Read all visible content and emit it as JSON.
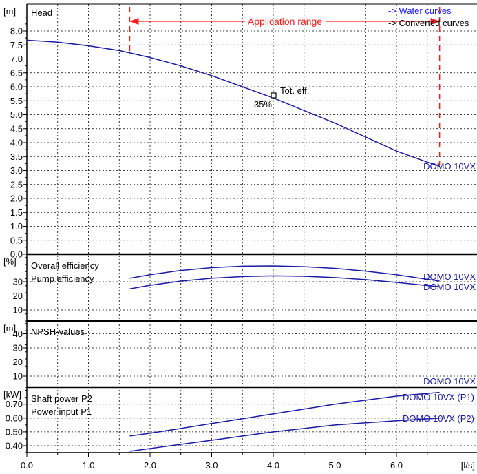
{
  "chart_data": {
    "type": "line",
    "x_unit": "[l/s]",
    "x_ticks": [
      "0.0",
      "1.0",
      "2.0",
      "3.0",
      "4.0",
      "5.0",
      "6.0"
    ],
    "legend": {
      "water": "-> Water curves",
      "converted": "-> Converted curves"
    },
    "application_range": {
      "label": "Application range",
      "x_start": 1.67,
      "x_end": 6.7
    },
    "colors": {
      "curve": "#1a1aa8",
      "range": "#ff1a1a",
      "grid": "#000000"
    },
    "panels": [
      {
        "id": "head",
        "unit": "[m]",
        "labels": [
          "Head"
        ],
        "y_ticks": [
          "0.0",
          "0.5",
          "1.0",
          "1.5",
          "2.0",
          "2.5",
          "3.0",
          "3.5",
          "4.0",
          "4.5",
          "5.0",
          "5.5",
          "6.0",
          "6.5",
          "7.0",
          "7.5",
          "8.0"
        ],
        "ylim": [
          0,
          8.5
        ],
        "series": [
          {
            "name": "DOMO 10VX",
            "x": [
              0.0,
              0.5,
              1.0,
              1.5,
              2.0,
              2.5,
              3.0,
              3.5,
              4.0,
              4.5,
              5.0,
              5.5,
              6.0,
              6.5,
              6.7
            ],
            "y": [
              7.67,
              7.6,
              7.47,
              7.3,
              7.05,
              6.75,
              6.4,
              6.0,
              5.6,
              5.15,
              4.7,
              4.2,
              3.7,
              3.3,
              3.15
            ]
          }
        ],
        "annotations": {
          "efficiency_point": {
            "x": 4.0,
            "y": 5.68,
            "label": "Tot. eff.",
            "value": "35%"
          }
        }
      },
      {
        "id": "efficiency",
        "unit": "[%]",
        "labels": [
          "Overall efficiency",
          "Pump efficiency"
        ],
        "y_ticks": [
          "10",
          "20",
          "30"
        ],
        "ylim": [
          0,
          42
        ],
        "series": [
          {
            "name": "DOMO 10VX",
            "x": [
              1.67,
              2.0,
              2.5,
              3.0,
              3.5,
              4.0,
              4.5,
              5.0,
              5.5,
              6.0,
              6.7
            ],
            "y": [
              32.5,
              35.0,
              38.0,
              40.0,
              41.0,
              41.2,
              40.7,
              39.5,
              37.5,
              35.0,
              30.5
            ]
          },
          {
            "name": "DOMO 10VX",
            "x": [
              1.67,
              2.0,
              2.5,
              3.0,
              3.5,
              4.0,
              4.5,
              5.0,
              5.5,
              6.0,
              6.7
            ],
            "y": [
              25.0,
              27.5,
              30.5,
              32.5,
              33.7,
              34.2,
              33.9,
              33.0,
              31.5,
              29.5,
              26.5
            ]
          }
        ]
      },
      {
        "id": "npsh",
        "unit": "[m]",
        "labels": [
          "NPSH-values"
        ],
        "y_ticks": [
          "10",
          "20",
          "30",
          "40"
        ],
        "ylim": [
          0,
          50
        ],
        "series_labels": [
          "DOMO 10VX"
        ],
        "series": []
      },
      {
        "id": "power",
        "unit": "[kW]",
        "labels": [
          "Shaft power P2",
          "Power input P1"
        ],
        "y_ticks": [
          "0.40",
          "0.50",
          "0.60",
          "0.70"
        ],
        "ylim": [
          0.35,
          0.79
        ],
        "series": [
          {
            "name": "DOMO 10VX (P1)",
            "x": [
              1.67,
              2.0,
              3.0,
              4.0,
              5.0,
              6.0,
              6.7
            ],
            "y": [
              0.47,
              0.49,
              0.56,
              0.63,
              0.7,
              0.758,
              0.785
            ]
          },
          {
            "name": "DOMO 10VX (P2)",
            "x": [
              1.67,
              2.0,
              3.0,
              4.0,
              5.0,
              6.0,
              6.7
            ],
            "y": [
              0.36,
              0.38,
              0.44,
              0.5,
              0.55,
              0.58,
              0.6
            ]
          }
        ]
      }
    ]
  }
}
